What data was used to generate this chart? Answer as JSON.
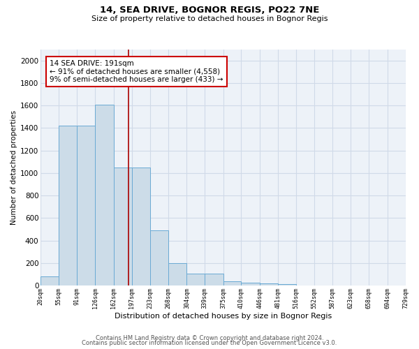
{
  "title1": "14, SEA DRIVE, BOGNOR REGIS, PO22 7NE",
  "title2": "Size of property relative to detached houses in Bognor Regis",
  "xlabel": "Distribution of detached houses by size in Bognor Regis",
  "ylabel": "Number of detached properties",
  "bar_values": [
    80,
    1420,
    1420,
    1610,
    1050,
    1050,
    490,
    200,
    105,
    105,
    40,
    25,
    20,
    15,
    0,
    0,
    0,
    0,
    0,
    0
  ],
  "bin_edges": [
    20,
    55,
    91,
    126,
    162,
    197,
    233,
    268,
    304,
    339,
    375,
    410,
    446,
    481,
    516,
    552,
    587,
    623,
    658,
    694,
    729
  ],
  "tick_labels": [
    "20sqm",
    "55sqm",
    "91sqm",
    "126sqm",
    "162sqm",
    "197sqm",
    "233sqm",
    "268sqm",
    "304sqm",
    "339sqm",
    "375sqm",
    "410sqm",
    "446sqm",
    "481sqm",
    "516sqm",
    "552sqm",
    "587sqm",
    "623sqm",
    "658sqm",
    "694sqm",
    "729sqm"
  ],
  "annotation_line1": "14 SEA DRIVE: 191sqm",
  "annotation_line2": "← 91% of detached houses are smaller (4,558)",
  "annotation_line3": "9% of semi-detached houses are larger (433) →",
  "vline_x": 191,
  "bar_color": "#ccdce8",
  "bar_edge_color": "#6aaad4",
  "vline_color": "#aa0000",
  "annotation_box_edge": "#cc0000",
  "grid_color": "#d0dae8",
  "bg_color": "#edf2f8",
  "ylim": [
    0,
    2100
  ],
  "yticks": [
    0,
    200,
    400,
    600,
    800,
    1000,
    1200,
    1400,
    1600,
    1800,
    2000
  ],
  "footer1": "Contains HM Land Registry data © Crown copyright and database right 2024.",
  "footer2": "Contains public sector information licensed under the Open Government Licence v3.0."
}
